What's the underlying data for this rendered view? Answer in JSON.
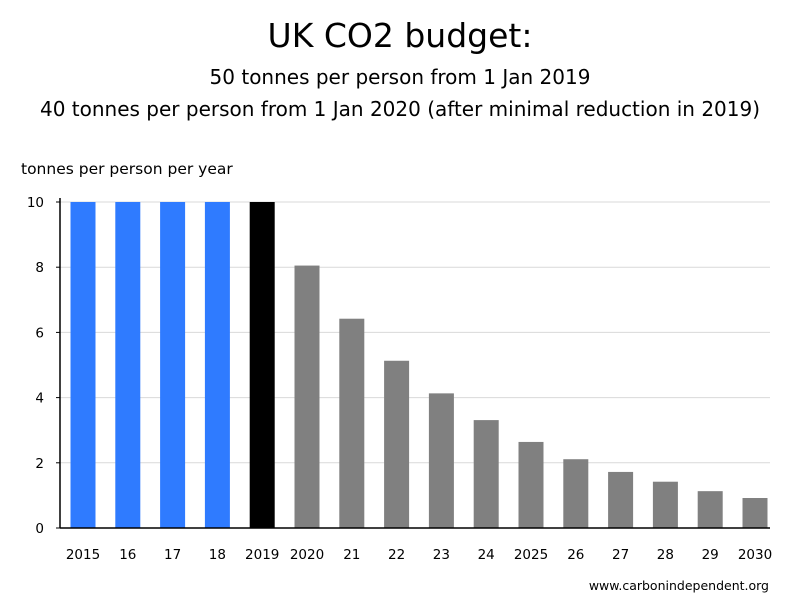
{
  "chart_data": {
    "type": "bar",
    "title": "UK CO2 budget:",
    "subtitle": [
      "50 tonnes per person from 1 Jan 2019",
      "40 tonnes per person from 1 Jan 2020 (after minimal reduction in 2019)"
    ],
    "xlabel": "",
    "ylabel": "tonnes per person per year",
    "ylim": [
      0,
      10
    ],
    "yticks": [
      0,
      2,
      4,
      6,
      8,
      10
    ],
    "grid": true,
    "categories": [
      "2015",
      "16",
      "17",
      "18",
      "2019",
      "2020",
      "21",
      "22",
      "23",
      "24",
      "2025",
      "26",
      "27",
      "28",
      "29",
      "2030"
    ],
    "values": [
      10,
      10,
      10,
      10,
      10,
      8.05,
      6.42,
      5.13,
      4.13,
      3.31,
      2.64,
      2.11,
      1.72,
      1.42,
      1.13,
      0.92
    ],
    "bar_colors": [
      "#2f7bff",
      "#2f7bff",
      "#2f7bff",
      "#2f7bff",
      "#000000",
      "#808080",
      "#808080",
      "#808080",
      "#808080",
      "#808080",
      "#808080",
      "#808080",
      "#808080",
      "#808080",
      "#808080",
      "#808080"
    ],
    "grid_color": "#d9d9d9",
    "axis_color": "#000000"
  },
  "footer": {
    "source": "www.carbonindependent.org"
  }
}
